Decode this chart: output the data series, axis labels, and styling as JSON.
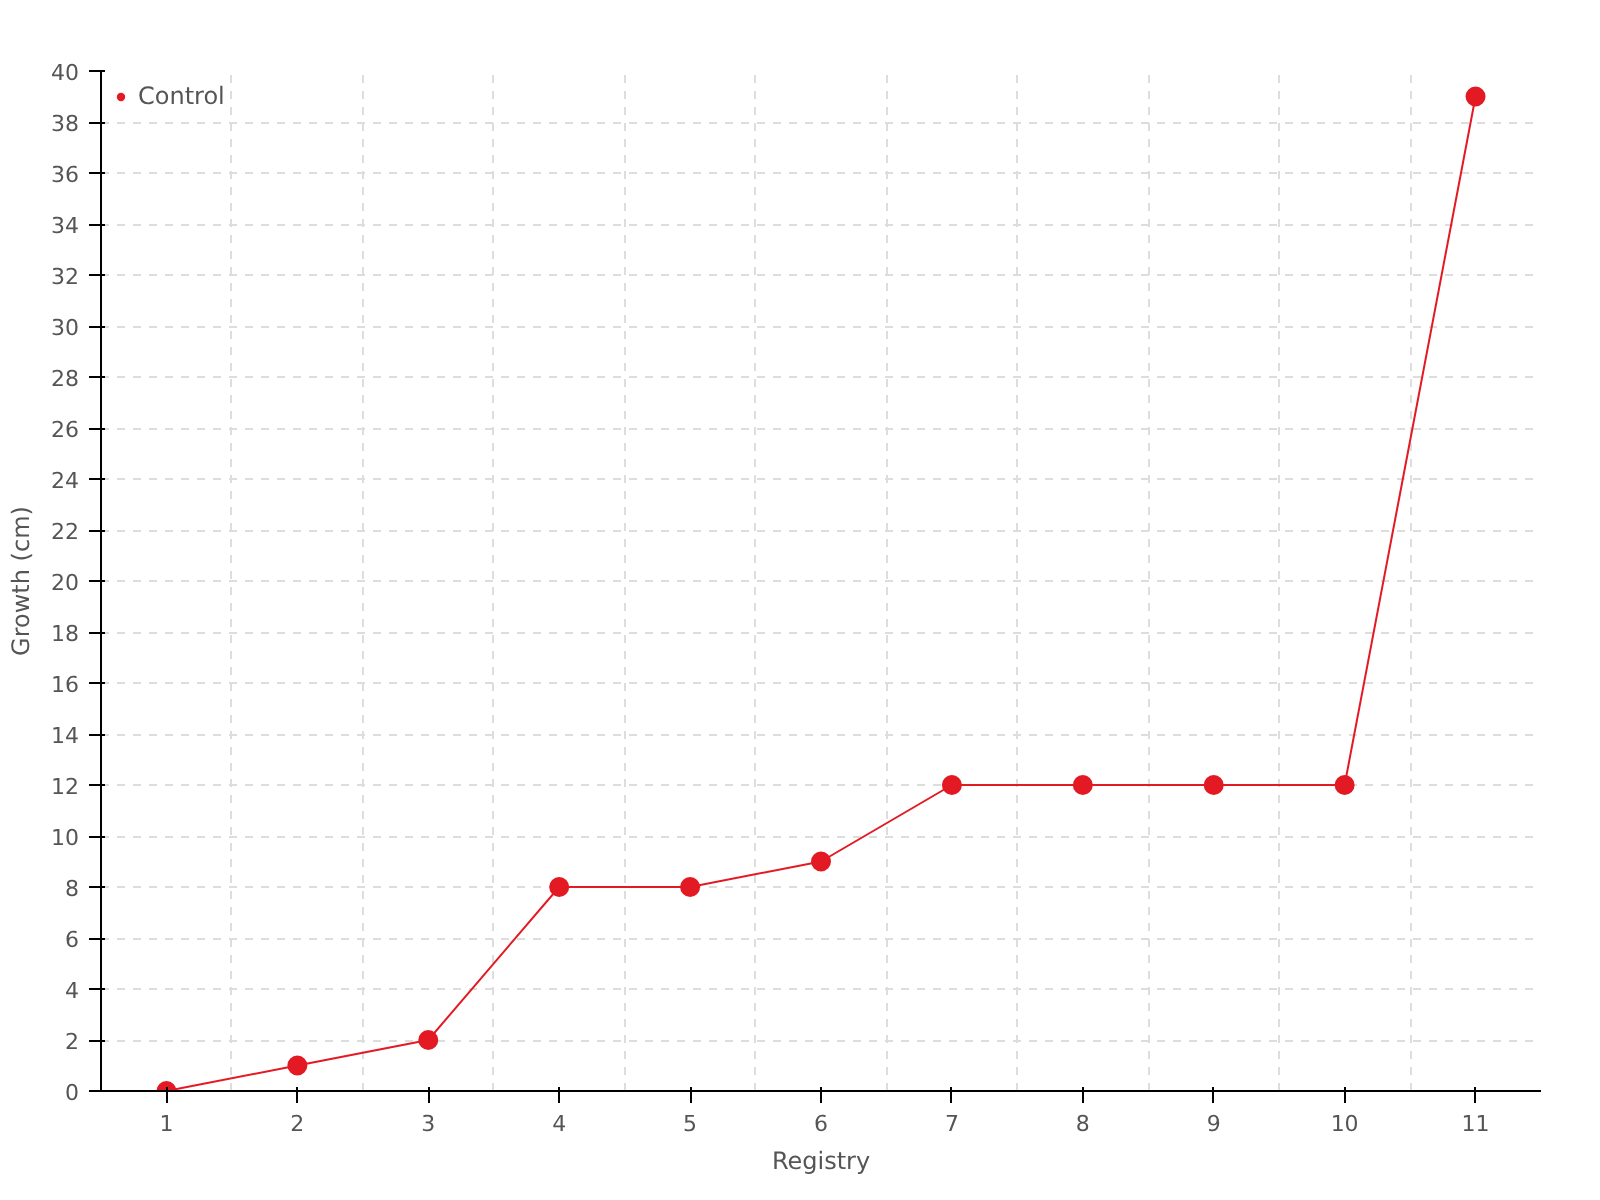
{
  "chart_data": {
    "type": "line",
    "xlabel": "Registry",
    "ylabel": "Growth (cm)",
    "categories": [
      "1",
      "2",
      "3",
      "4",
      "5",
      "6",
      "7",
      "8",
      "9",
      "10",
      "11"
    ],
    "series": [
      {
        "name": "Control",
        "color": "#e31a23",
        "values": [
          0,
          1,
          2,
          8,
          8,
          9,
          12,
          12,
          12,
          12,
          39
        ]
      }
    ],
    "ylim": [
      0,
      40
    ],
    "yticks": [
      0,
      2,
      4,
      6,
      8,
      10,
      12,
      14,
      16,
      18,
      20,
      22,
      24,
      26,
      28,
      30,
      32,
      34,
      36,
      38,
      40
    ],
    "grid": true,
    "legend": "top left",
    "marker": "circle",
    "line_style": "solid"
  }
}
